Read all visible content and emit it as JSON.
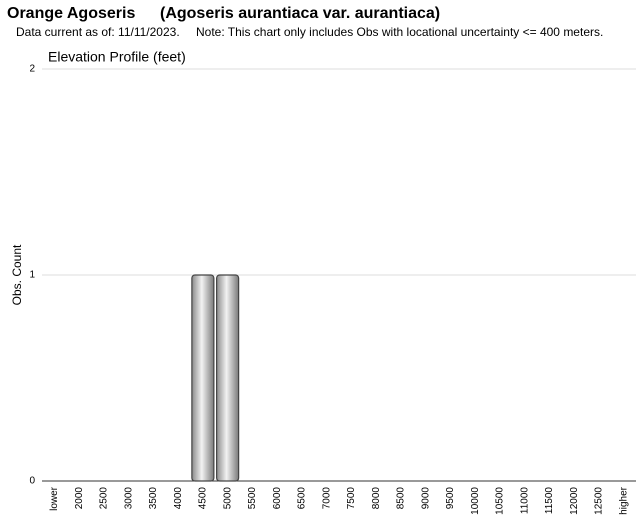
{
  "header": {
    "common_name": "Orange Agoseris",
    "scientific_name": "(Agoseris aurantiaca var. aurantiaca)",
    "date_note": "Data current as of: 11/11/2023.",
    "note": "Note: This chart only includes Obs with locational uncertainty <= 400 meters."
  },
  "chart_data": {
    "type": "bar",
    "title": "Elevation Profile (feet)",
    "y_label": "Obs. Count",
    "categories": [
      "lower",
      "2000",
      "2500",
      "3000",
      "3500",
      "4000",
      "4500",
      "5000",
      "5500",
      "6000",
      "6500",
      "7000",
      "7500",
      "8000",
      "8500",
      "9000",
      "9500",
      "10000",
      "10500",
      "11000",
      "11500",
      "12000",
      "12500",
      "higher"
    ],
    "values": [
      0,
      0,
      0,
      0,
      0,
      0,
      1,
      1,
      0,
      0,
      0,
      0,
      0,
      0,
      0,
      0,
      0,
      0,
      0,
      0,
      0,
      0,
      0,
      0
    ],
    "color": "#a6a6a6",
    "ylim": [
      0,
      2
    ],
    "yticks": [
      0,
      1,
      2
    ],
    "grid": true
  }
}
